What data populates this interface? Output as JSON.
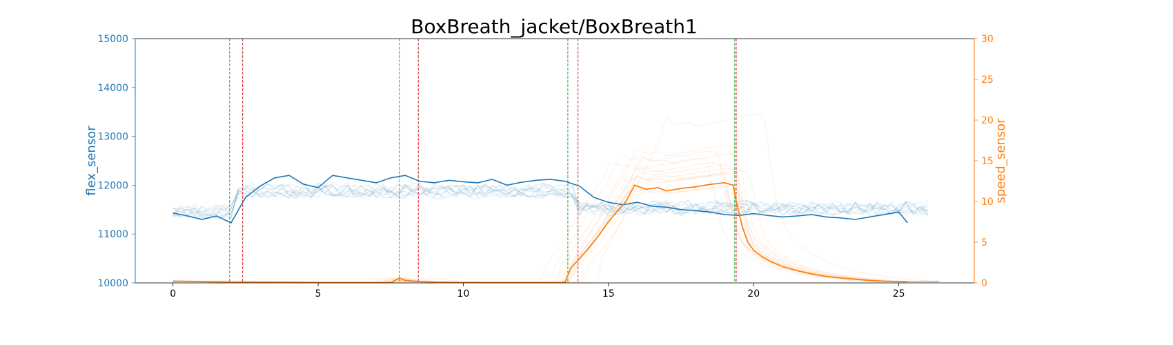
{
  "chart_data": {
    "type": "line",
    "title": "BoxBreath_jacket/BoxBreath1",
    "xlabel": "",
    "ylabel_left": "flex_sensor",
    "ylabel_right": "speed_sensor",
    "xlim": [
      -1.3,
      27.6
    ],
    "ylim_left": [
      10000,
      15000
    ],
    "ylim_right": [
      0,
      30
    ],
    "x_ticks": [
      0,
      5,
      10,
      15,
      20,
      25
    ],
    "y_left_ticks": [
      10000,
      11000,
      12000,
      13000,
      14000,
      15000
    ],
    "y_right_ticks": [
      0,
      5,
      10,
      15,
      20,
      25,
      30
    ],
    "grid": false,
    "colors": {
      "flex": "#1f77b4",
      "speed": "#ff7f0e",
      "left_axis": "#1f77b4",
      "right_axis": "#ff7f0e",
      "start_marker": "#2ca02c",
      "end_marker": "#d62728"
    },
    "vlines_start": [
      1.95,
      7.8,
      13.6,
      19.35
    ],
    "vlines_end": [
      2.4,
      8.45,
      13.95,
      19.4
    ],
    "series": [
      {
        "axis": "left",
        "x": [
          0,
          0.5,
          1,
          1.5,
          2,
          2.5,
          3,
          3.5,
          4,
          4.5,
          5,
          5.5,
          6,
          6.5,
          7,
          7.5,
          8,
          8.5,
          9,
          9.5,
          10,
          10.5,
          11,
          11.5,
          12,
          12.5,
          13,
          13.5,
          14,
          14.5,
          15,
          15.5,
          16,
          16.5,
          17,
          17.5,
          18,
          18.5,
          19,
          19.5,
          20,
          20.5,
          21,
          21.5,
          22,
          22.5,
          23,
          23.5,
          24,
          24.5,
          25,
          25.3
        ],
        "values": [
          11430,
          11370,
          11300,
          11370,
          11230,
          11750,
          11980,
          12150,
          12200,
          12020,
          11950,
          12200,
          12150,
          12100,
          12050,
          12150,
          12200,
          12080,
          12050,
          12100,
          12070,
          12050,
          12120,
          12000,
          12060,
          12100,
          12120,
          12080,
          11980,
          11750,
          11650,
          11600,
          11650,
          11570,
          11550,
          11500,
          11480,
          11450,
          11400,
          11380,
          11420,
          11380,
          11350,
          11370,
          11400,
          11350,
          11330,
          11300,
          11350,
          11400,
          11450,
          11230
        ]
      },
      {
        "axis": "right",
        "x": [
          0,
          1,
          2,
          3,
          4,
          5,
          6,
          7,
          7.5,
          7.8,
          8,
          8.5,
          9,
          10,
          11,
          12,
          13,
          13.5,
          13.7,
          14,
          14.3,
          14.6,
          15,
          15.3,
          15.6,
          15.9,
          16.3,
          16.7,
          17,
          17.5,
          18,
          18.5,
          19,
          19.3,
          19.4,
          19.6,
          19.8,
          20,
          20.3,
          20.6,
          21,
          21.5,
          22,
          22.5,
          23,
          23.5,
          24,
          24.5,
          25,
          25.3
        ],
        "values": [
          0.2,
          0.15,
          0.1,
          0.1,
          0.08,
          0.05,
          0.05,
          0.05,
          0.05,
          0.6,
          0.3,
          0.15,
          0.1,
          0.05,
          0.05,
          0.05,
          0.05,
          0.05,
          1.8,
          3.0,
          4.2,
          5.5,
          7.5,
          8.8,
          10.0,
          12.0,
          11.5,
          11.7,
          11.3,
          11.6,
          11.8,
          12.1,
          12.3,
          12.0,
          10.0,
          7.0,
          5.0,
          4.0,
          3.2,
          2.6,
          2.0,
          1.5,
          1.1,
          0.8,
          0.6,
          0.45,
          0.3,
          0.2,
          0.15,
          0.15
        ]
      }
    ],
    "background_traces": {
      "flex_count": 12,
      "speed_count": 14
    }
  }
}
